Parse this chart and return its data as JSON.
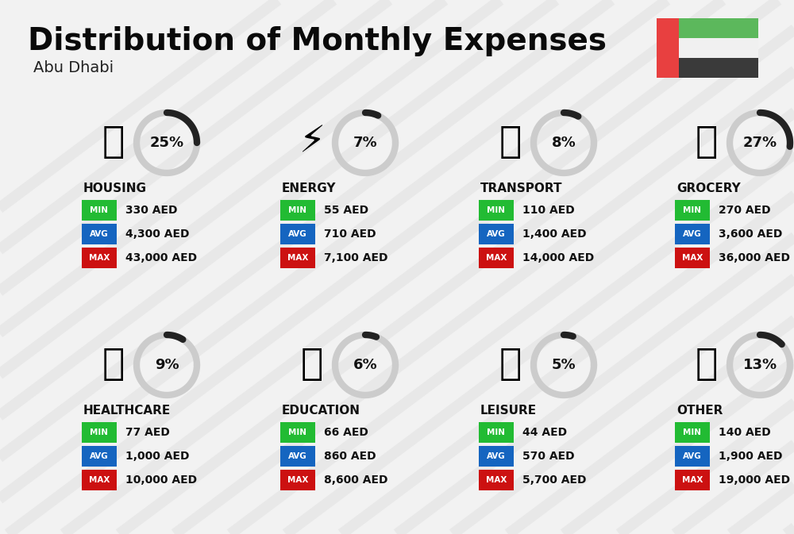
{
  "title": "Distribution of Monthly Expenses",
  "subtitle": "Abu Dhabi",
  "background_color": "#f2f2f2",
  "categories": [
    {
      "name": "HOUSING",
      "percent": 25,
      "min_val": "330 AED",
      "avg_val": "4,300 AED",
      "max_val": "43,000 AED",
      "col": 0,
      "row": 0
    },
    {
      "name": "ENERGY",
      "percent": 7,
      "min_val": "55 AED",
      "avg_val": "710 AED",
      "max_val": "7,100 AED",
      "col": 1,
      "row": 0
    },
    {
      "name": "TRANSPORT",
      "percent": 8,
      "min_val": "110 AED",
      "avg_val": "1,400 AED",
      "max_val": "14,000 AED",
      "col": 2,
      "row": 0
    },
    {
      "name": "GROCERY",
      "percent": 27,
      "min_val": "270 AED",
      "avg_val": "3,600 AED",
      "max_val": "36,000 AED",
      "col": 3,
      "row": 0
    },
    {
      "name": "HEALTHCARE",
      "percent": 9,
      "min_val": "77 AED",
      "avg_val": "1,000 AED",
      "max_val": "10,000 AED",
      "col": 0,
      "row": 1
    },
    {
      "name": "EDUCATION",
      "percent": 6,
      "min_val": "66 AED",
      "avg_val": "860 AED",
      "max_val": "8,600 AED",
      "col": 1,
      "row": 1
    },
    {
      "name": "LEISURE",
      "percent": 5,
      "min_val": "44 AED",
      "avg_val": "570 AED",
      "max_val": "5,700 AED",
      "col": 2,
      "row": 1
    },
    {
      "name": "OTHER",
      "percent": 13,
      "min_val": "140 AED",
      "avg_val": "1,900 AED",
      "max_val": "19,000 AED",
      "col": 3,
      "row": 1
    }
  ],
  "min_color": "#22bb33",
  "avg_color": "#1565c0",
  "max_color": "#cc1111",
  "value_text_color": "#111111",
  "circle_dark_color": "#222222",
  "circle_light_color": "#cccccc",
  "category_name_color": "#111111",
  "title_color": "#0a0a0a",
  "subtitle_color": "#222222",
  "stripe_color": "#e0e0e0",
  "flag_green": "#5cb85c",
  "flag_red": "#e84040",
  "flag_black": "#333333",
  "flag_white": "#f8f8f8"
}
